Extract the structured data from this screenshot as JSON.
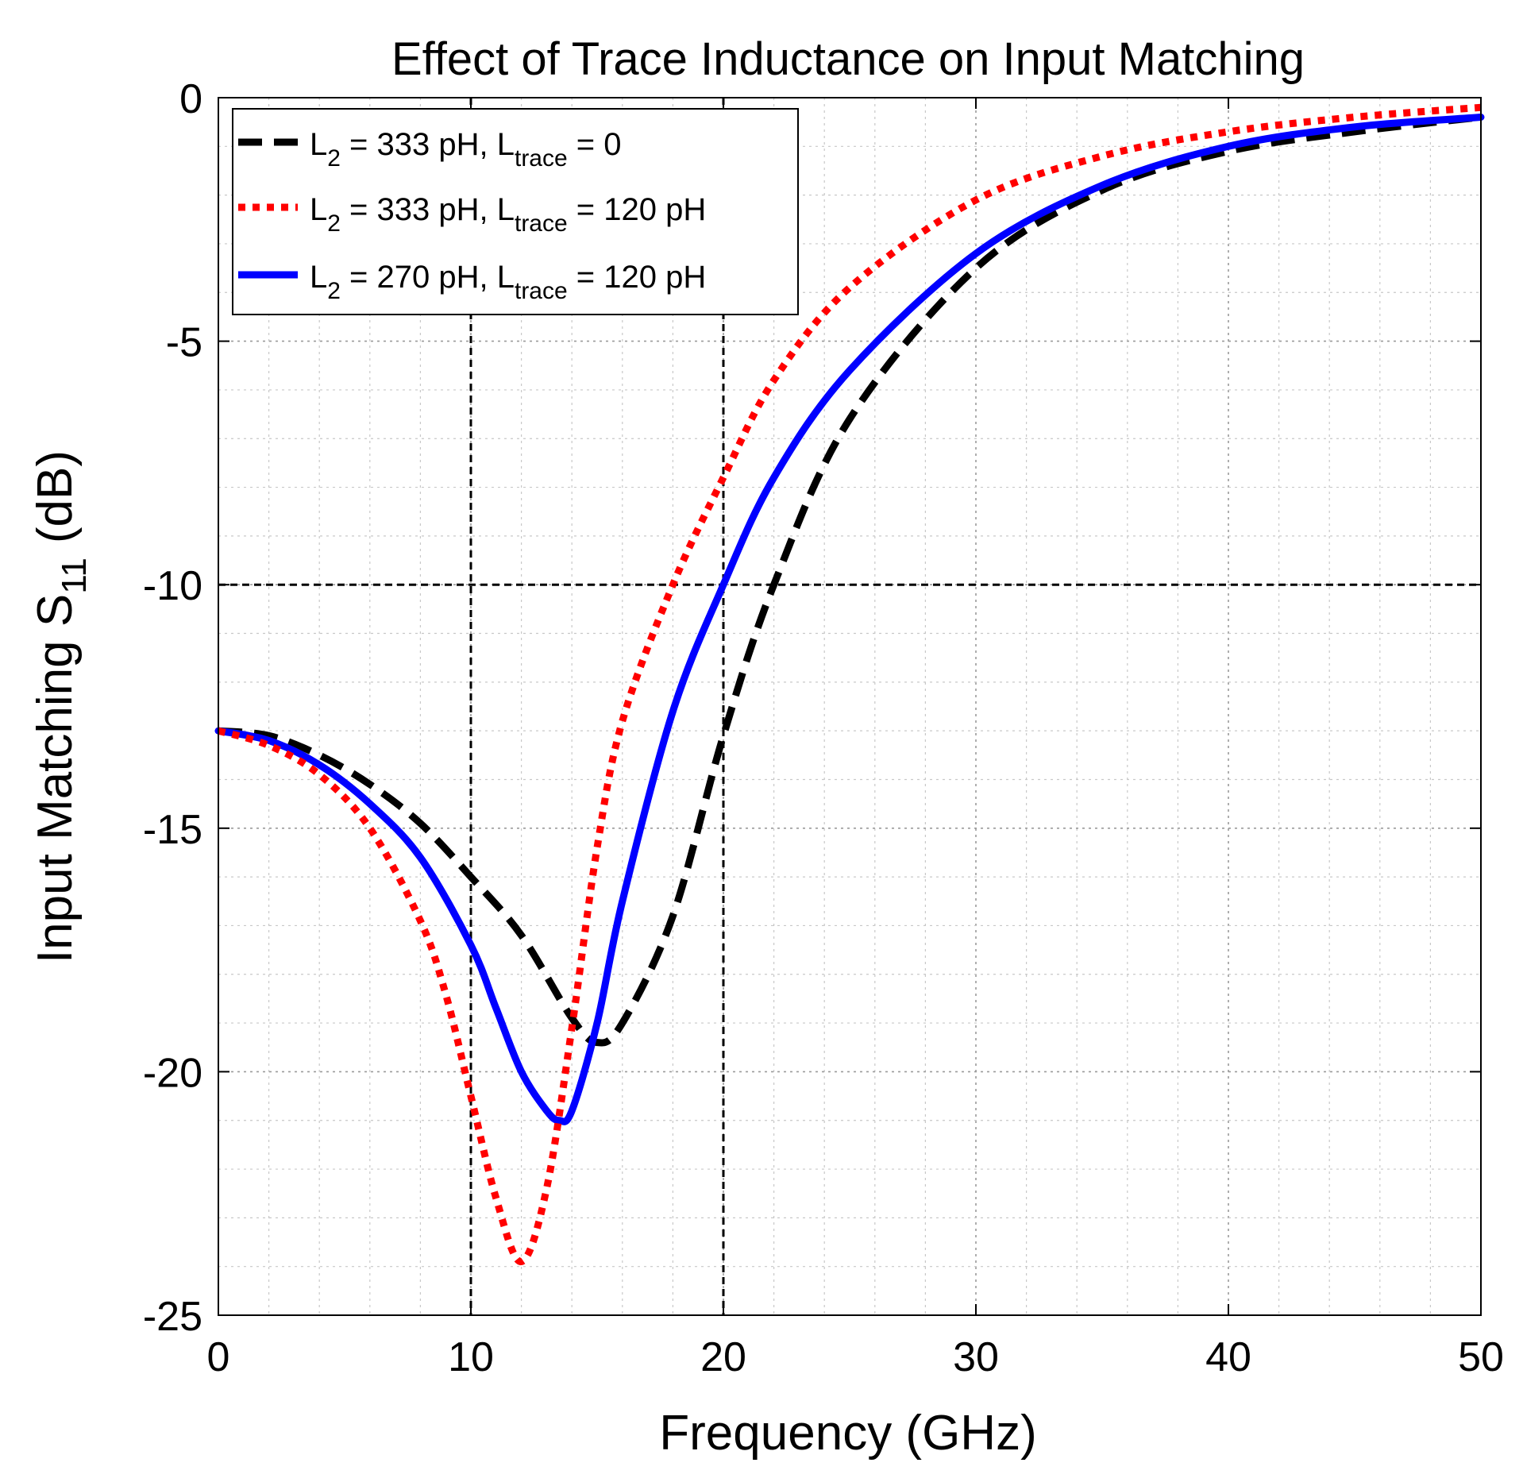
{
  "chart_data": {
    "type": "line",
    "title": "Effect of Trace Inductance on Input Matching",
    "xlabel": "Frequency (GHz)",
    "ylabel": {
      "main": "Input Matching S",
      "sub": "11",
      "unit": "(dB)"
    },
    "xlim": [
      0,
      50
    ],
    "ylim": [
      -25,
      0
    ],
    "xticks": [
      0,
      10,
      20,
      30,
      40,
      50
    ],
    "yticks": [
      0,
      -5,
      -10,
      -15,
      -20,
      -25
    ],
    "xtick_labels": [
      "0",
      "10",
      "20",
      "30",
      "40",
      "50"
    ],
    "ytick_labels": [
      "0",
      "-5",
      "-10",
      "-15",
      "-20",
      "-25"
    ],
    "grid": true,
    "legend_position": "top-left",
    "reference_lines": {
      "vertical_x": [
        10,
        20
      ],
      "horizontal_y": [
        -10
      ]
    },
    "series": [
      {
        "name": "L2 = 333 pH, Ltrace = 0",
        "legend": {
          "a": "L",
          "a_sub": "2",
          "b": " = 333 pH, L",
          "b_sub": "trace",
          "c": " = 0"
        },
        "color": "#000000",
        "style": "dashed",
        "x": [
          0,
          2,
          4,
          6,
          8,
          10,
          12,
          14,
          15,
          16,
          18,
          20,
          22,
          25,
          30,
          35,
          40,
          45,
          50
        ],
        "y": [
          -13.0,
          -13.1,
          -13.5,
          -14.1,
          -14.9,
          -16.0,
          -17.2,
          -18.9,
          -19.4,
          -19.0,
          -16.8,
          -13.1,
          -10.0,
          -6.6,
          -3.5,
          -1.9,
          -1.1,
          -0.7,
          -0.4
        ]
      },
      {
        "name": "L2 = 333 pH, Ltrace = 120 pH",
        "legend": {
          "a": "L",
          "a_sub": "2",
          "b": " = 333 pH, L",
          "b_sub": "trace",
          "c": " = 120 pH"
        },
        "color": "#ff0000",
        "style": "dotted",
        "x": [
          0,
          2,
          4,
          6,
          8,
          9,
          10,
          11,
          12,
          13,
          14,
          15,
          16,
          18,
          20,
          22,
          25,
          30,
          35,
          40,
          45,
          50
        ],
        "y": [
          -13.0,
          -13.3,
          -13.9,
          -15.0,
          -16.9,
          -18.4,
          -20.5,
          -22.6,
          -23.9,
          -22.4,
          -19.1,
          -15.4,
          -12.8,
          -10.0,
          -7.8,
          -5.8,
          -3.9,
          -2.1,
          -1.2,
          -0.7,
          -0.4,
          -0.2
        ]
      },
      {
        "name": "L2 = 270 pH, Ltrace = 120 pH",
        "legend": {
          "a": "L",
          "a_sub": "2",
          "b": " = 270 pH, L",
          "b_sub": "trace",
          "c": " = 120 pH"
        },
        "color": "#0000ff",
        "style": "solid",
        "x": [
          0,
          2,
          4,
          6,
          8,
          10,
          11,
          12,
          13,
          13.5,
          14,
          15,
          16,
          18,
          20,
          22,
          25,
          30,
          35,
          40,
          45,
          50
        ],
        "y": [
          -13.0,
          -13.2,
          -13.7,
          -14.5,
          -15.6,
          -17.4,
          -18.7,
          -20.0,
          -20.8,
          -21.0,
          -20.8,
          -19.0,
          -16.5,
          -12.6,
          -10.0,
          -7.8,
          -5.6,
          -3.2,
          -1.8,
          -1.0,
          -0.6,
          -0.4
        ]
      }
    ]
  }
}
